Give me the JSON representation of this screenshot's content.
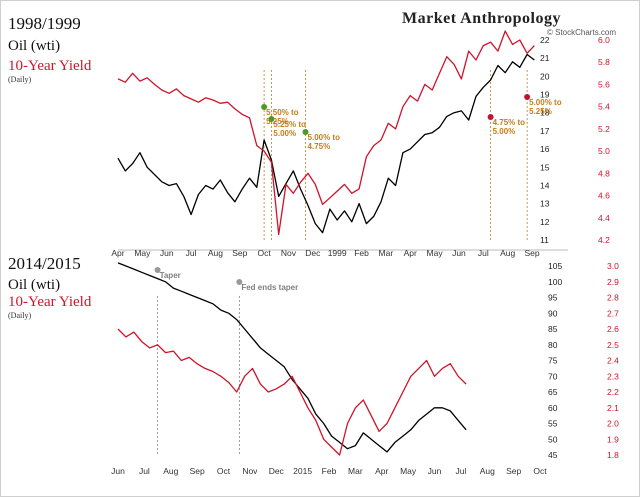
{
  "branding": {
    "title": "Market Anthropology",
    "source": "© StockCharts.com"
  },
  "chart_data": [
    {
      "type": "line",
      "title": "1998/1999",
      "subtitle_series_1": "Oil (wti)",
      "subtitle_series_2": "10-Year Yield",
      "subtitle_freq": "(Daily)",
      "x_tick_labels": [
        "Apr",
        "May",
        "Jun",
        "Jul",
        "Aug",
        "Sep",
        "Oct",
        "Nov",
        "Dec",
        "1999",
        "Feb",
        "Mar",
        "Apr",
        "May",
        "Jun",
        "Jul",
        "Aug",
        "Sep"
      ],
      "y_left_ticks_oil": [
        11,
        12,
        13,
        14,
        15,
        16,
        17,
        18,
        19,
        20,
        21,
        22
      ],
      "y_right_ticks_yield": [
        4.2,
        4.4,
        4.6,
        4.8,
        5.0,
        5.2,
        5.4,
        5.6,
        5.8,
        6.0
      ],
      "series": [
        {
          "name": "Oil (wti)",
          "color": "#000000",
          "axis": "left",
          "x": [
            0,
            0.3,
            0.6,
            0.9,
            1.2,
            1.5,
            1.8,
            2.1,
            2.4,
            2.7,
            3.0,
            3.3,
            3.6,
            3.9,
            4.2,
            4.5,
            4.8,
            5.1,
            5.4,
            5.7,
            6.0,
            6.3,
            6.6,
            6.9,
            7.2,
            7.5,
            7.8,
            8.1,
            8.4,
            8.7,
            9.0,
            9.3,
            9.6,
            9.9,
            10.2,
            10.5,
            10.8,
            11.1,
            11.4,
            11.7,
            12.0,
            12.3,
            12.6,
            12.9,
            13.2,
            13.5,
            13.8,
            14.1,
            14.4,
            14.7,
            15.0,
            15.3,
            15.6,
            15.9,
            16.2,
            16.5,
            16.8,
            17.1
          ],
          "values": [
            15.5,
            14.8,
            15.2,
            15.8,
            15.0,
            14.6,
            14.2,
            14.0,
            14.1,
            13.4,
            12.4,
            13.5,
            14.0,
            13.8,
            14.3,
            13.6,
            13.1,
            13.8,
            14.4,
            13.9,
            16.5,
            15.4,
            13.4,
            14.1,
            14.8,
            13.8,
            12.9,
            11.9,
            11.4,
            12.7,
            12.1,
            12.6,
            12.0,
            13.0,
            11.9,
            12.3,
            13.1,
            14.4,
            14.0,
            15.8,
            16.0,
            16.4,
            16.8,
            16.9,
            17.2,
            17.8,
            18.0,
            18.1,
            17.6,
            18.9,
            19.4,
            19.8,
            20.6,
            20.2,
            20.8,
            20.5,
            21.2,
            20.9
          ]
        },
        {
          "name": "10-Year Yield",
          "color": "#d0132a",
          "axis": "right",
          "x": [
            0,
            0.3,
            0.6,
            0.9,
            1.2,
            1.5,
            1.8,
            2.1,
            2.4,
            2.7,
            3.0,
            3.3,
            3.6,
            3.9,
            4.2,
            4.5,
            4.8,
            5.1,
            5.4,
            5.7,
            6.0,
            6.3,
            6.6,
            6.9,
            7.2,
            7.5,
            7.8,
            8.1,
            8.4,
            8.7,
            9.0,
            9.3,
            9.6,
            9.9,
            10.2,
            10.5,
            10.8,
            11.1,
            11.4,
            11.7,
            12.0,
            12.3,
            12.6,
            12.9,
            13.2,
            13.5,
            13.8,
            14.1,
            14.4,
            14.7,
            15.0,
            15.3,
            15.6,
            15.9,
            16.2,
            16.5,
            16.8,
            17.1
          ],
          "values": [
            5.65,
            5.62,
            5.7,
            5.63,
            5.66,
            5.6,
            5.55,
            5.52,
            5.56,
            5.5,
            5.47,
            5.44,
            5.48,
            5.46,
            5.43,
            5.44,
            5.38,
            5.33,
            5.3,
            5.05,
            5.0,
            4.9,
            4.25,
            4.7,
            4.62,
            4.72,
            4.8,
            4.7,
            4.52,
            4.58,
            4.64,
            4.7,
            4.62,
            4.66,
            4.95,
            5.05,
            5.1,
            5.25,
            5.2,
            5.4,
            5.5,
            5.45,
            5.6,
            5.55,
            5.7,
            5.85,
            5.78,
            5.65,
            5.9,
            5.82,
            5.95,
            5.98,
            5.9,
            6.08,
            5.96,
            6.0,
            5.88,
            5.95
          ]
        }
      ],
      "annotations": [
        {
          "label": "5.50% to 5.25%",
          "x": 6.0,
          "color": "#c87c1a"
        },
        {
          "label": "5.25% to 5.00%",
          "x": 6.3,
          "color": "#c87c1a"
        },
        {
          "label": "5.00% to 4.75%",
          "x": 7.7,
          "color": "#c87c1a"
        },
        {
          "label": "4.75% to 5.00%",
          "x": 15.3,
          "color": "#c87c1a"
        },
        {
          "label": "5.00% to 5.25%",
          "x": 16.8,
          "color": "#c87c1a"
        }
      ]
    },
    {
      "type": "line",
      "title": "2014/2015",
      "subtitle_series_1": "Oil (wti)",
      "subtitle_series_2": "10-Year Yield",
      "subtitle_freq": "(Daily)",
      "x_tick_labels": [
        "Jun",
        "Jul",
        "Aug",
        "Sep",
        "Oct",
        "Nov",
        "Dec",
        "2015",
        "Feb",
        "Mar",
        "Apr",
        "May",
        "Jun",
        "Jul",
        "Aug",
        "Sep",
        "Oct"
      ],
      "y_left_ticks_oil": [
        45,
        50,
        55,
        60,
        65,
        70,
        75,
        80,
        85,
        90,
        95,
        100,
        105
      ],
      "y_right_ticks_yield": [
        1.8,
        1.9,
        2.0,
        2.1,
        2.2,
        2.3,
        2.4,
        2.5,
        2.6,
        2.7,
        2.8,
        2.9,
        3.0
      ],
      "series": [
        {
          "name": "Oil (wti)",
          "color": "#000000",
          "axis": "left",
          "x": [
            0,
            0.3,
            0.6,
            0.9,
            1.2,
            1.5,
            1.8,
            2.1,
            2.4,
            2.7,
            3.0,
            3.3,
            3.6,
            3.9,
            4.2,
            4.5,
            4.8,
            5.1,
            5.4,
            5.7,
            6.0,
            6.3,
            6.6,
            6.9,
            7.2,
            7.5,
            7.8,
            8.1,
            8.4,
            8.7,
            9.0,
            9.3,
            9.6,
            9.9,
            10.2,
            10.5,
            10.8,
            11.1,
            11.4,
            11.7,
            12.0,
            12.3,
            12.6,
            12.9,
            13.2
          ],
          "values": [
            106,
            105,
            104,
            103,
            102,
            101,
            100,
            98,
            97,
            96,
            95,
            94,
            93,
            91,
            90,
            88,
            85,
            82,
            79,
            77,
            75,
            73,
            69,
            66,
            63,
            58,
            55,
            51,
            49,
            47,
            48,
            52,
            50,
            48,
            46,
            49,
            51,
            53,
            56,
            58,
            60,
            60,
            59,
            56,
            53
          ]
        },
        {
          "name": "10-Year Yield",
          "color": "#d0132a",
          "axis": "right",
          "x": [
            0,
            0.3,
            0.6,
            0.9,
            1.2,
            1.5,
            1.8,
            2.1,
            2.4,
            2.7,
            3.0,
            3.3,
            3.6,
            3.9,
            4.2,
            4.5,
            4.8,
            5.1,
            5.4,
            5.7,
            6.0,
            6.3,
            6.6,
            6.9,
            7.2,
            7.5,
            7.8,
            8.1,
            8.4,
            8.7,
            9.0,
            9.3,
            9.6,
            9.9,
            10.2,
            10.5,
            10.8,
            11.1,
            11.4,
            11.7,
            12.0,
            12.3,
            12.6,
            12.9,
            13.2
          ],
          "values": [
            2.6,
            2.55,
            2.58,
            2.52,
            2.48,
            2.5,
            2.45,
            2.46,
            2.4,
            2.42,
            2.38,
            2.35,
            2.33,
            2.3,
            2.26,
            2.2,
            2.3,
            2.35,
            2.25,
            2.2,
            2.22,
            2.25,
            2.3,
            2.2,
            2.1,
            2.02,
            1.9,
            1.85,
            1.8,
            2.0,
            2.1,
            2.15,
            2.05,
            1.95,
            2.0,
            2.1,
            2.2,
            2.3,
            2.35,
            2.4,
            2.3,
            2.35,
            2.38,
            2.3,
            2.25
          ]
        }
      ],
      "annotations": [
        {
          "label": "Taper",
          "x": 1.5,
          "color": "#808080"
        },
        {
          "label": "Fed ends taper",
          "x": 4.6,
          "color": "#808080"
        }
      ]
    }
  ]
}
